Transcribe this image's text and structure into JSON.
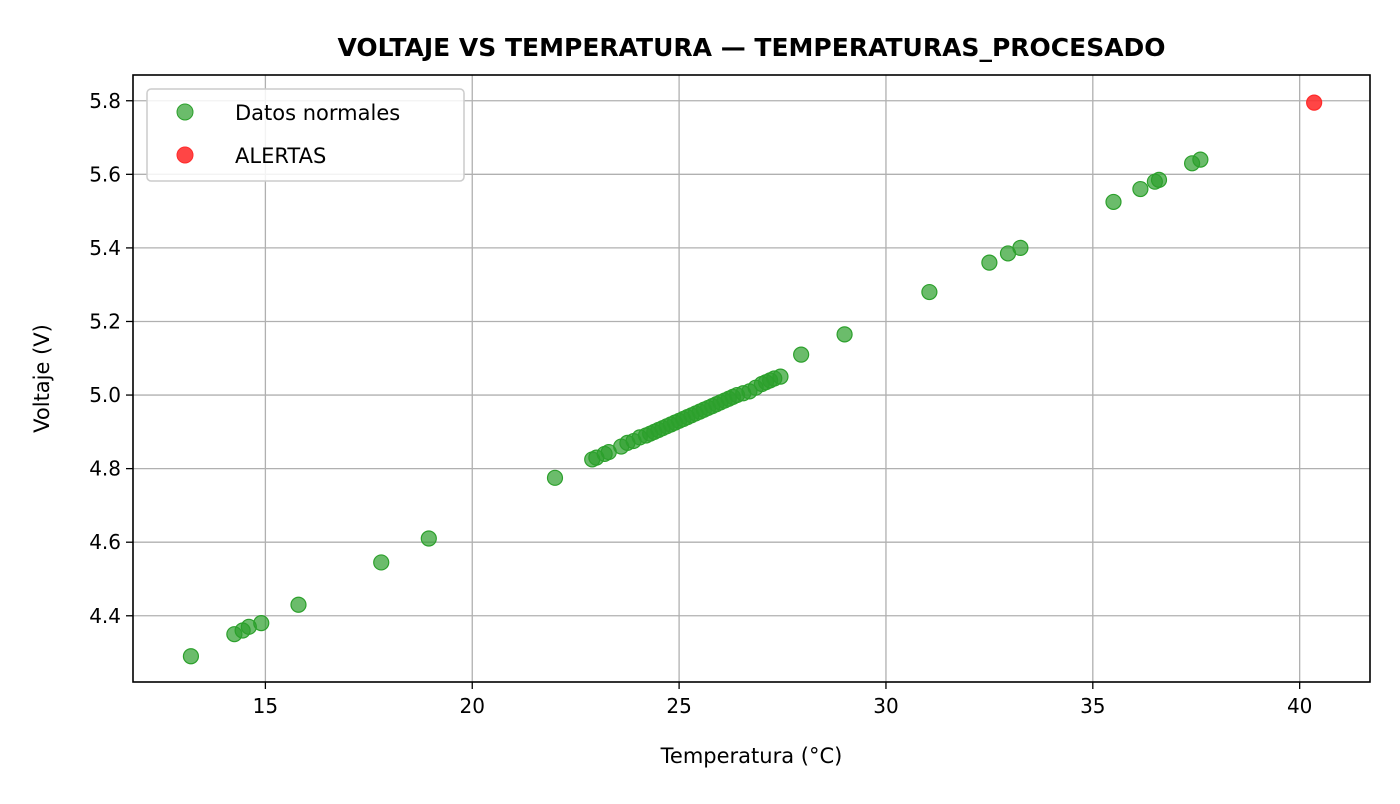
{
  "chart_data": {
    "type": "scatter",
    "title": "VOLTAJE VS TEMPERATURA — TEMPERATURAS_PROCESADO",
    "xlabel": "Temperatura (°C)",
    "ylabel": "Voltaje (V)",
    "xlim": [
      11.8,
      41.7
    ],
    "ylim": [
      4.22,
      5.87
    ],
    "xticks": [
      15,
      20,
      25,
      30,
      35,
      40
    ],
    "yticks": [
      4.4,
      4.6,
      4.8,
      5.0,
      5.2,
      5.4,
      5.6,
      5.8
    ],
    "grid": true,
    "legend_position": "top-left",
    "series": [
      {
        "name": "Datos normales",
        "color": "#2ca02c",
        "points": [
          [
            13.2,
            4.29
          ],
          [
            14.25,
            4.35
          ],
          [
            14.45,
            4.36
          ],
          [
            14.6,
            4.37
          ],
          [
            14.9,
            4.38
          ],
          [
            15.8,
            4.43
          ],
          [
            17.8,
            4.545
          ],
          [
            18.95,
            4.61
          ],
          [
            22.0,
            4.775
          ],
          [
            22.9,
            4.825
          ],
          [
            23.0,
            4.83
          ],
          [
            23.2,
            4.84
          ],
          [
            23.3,
            4.845
          ],
          [
            23.6,
            4.86
          ],
          [
            23.75,
            4.87
          ],
          [
            23.9,
            4.875
          ],
          [
            24.05,
            4.885
          ],
          [
            24.2,
            4.89
          ],
          [
            24.3,
            4.895
          ],
          [
            24.4,
            4.9
          ],
          [
            24.5,
            4.905
          ],
          [
            24.6,
            4.91
          ],
          [
            24.7,
            4.915
          ],
          [
            24.8,
            4.92
          ],
          [
            24.9,
            4.925
          ],
          [
            25.0,
            4.93
          ],
          [
            25.1,
            4.935
          ],
          [
            25.2,
            4.94
          ],
          [
            25.3,
            4.945
          ],
          [
            25.4,
            4.95
          ],
          [
            25.5,
            4.955
          ],
          [
            25.6,
            4.96
          ],
          [
            25.7,
            4.965
          ],
          [
            25.8,
            4.97
          ],
          [
            25.9,
            4.975
          ],
          [
            26.0,
            4.98
          ],
          [
            26.1,
            4.985
          ],
          [
            26.2,
            4.99
          ],
          [
            26.3,
            4.995
          ],
          [
            26.4,
            5.0
          ],
          [
            26.55,
            5.005
          ],
          [
            26.7,
            5.01
          ],
          [
            26.85,
            5.02
          ],
          [
            27.0,
            5.03
          ],
          [
            27.1,
            5.035
          ],
          [
            27.2,
            5.04
          ],
          [
            27.3,
            5.045
          ],
          [
            27.45,
            5.05
          ],
          [
            27.95,
            5.11
          ],
          [
            29.0,
            5.165
          ],
          [
            31.05,
            5.28
          ],
          [
            32.5,
            5.36
          ],
          [
            32.95,
            5.385
          ],
          [
            33.25,
            5.4
          ],
          [
            35.5,
            5.525
          ],
          [
            36.15,
            5.56
          ],
          [
            36.5,
            5.58
          ],
          [
            36.6,
            5.585
          ],
          [
            37.4,
            5.63
          ],
          [
            37.6,
            5.64
          ]
        ]
      },
      {
        "name": "ALERTAS",
        "color": "#ff2b2b",
        "points": [
          [
            40.35,
            5.795
          ]
        ]
      }
    ]
  }
}
